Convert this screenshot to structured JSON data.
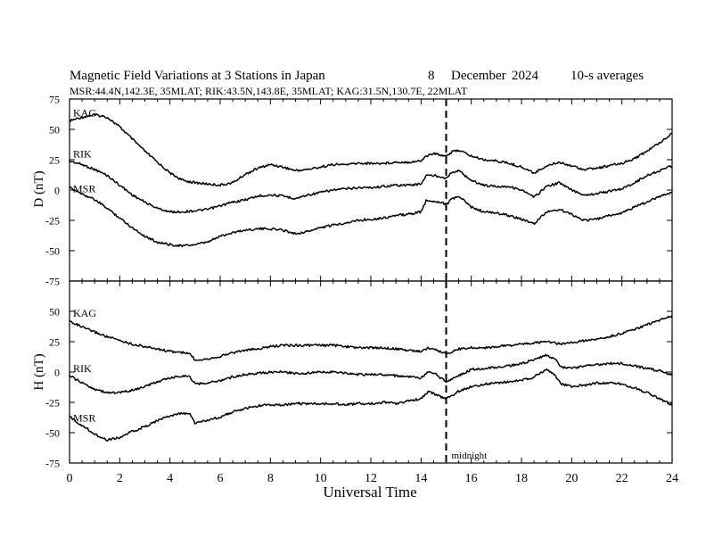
{
  "header": {
    "title": "Magnetic Field Variations at 3 Stations in Japan",
    "day": "8",
    "month": "December",
    "year": "2024",
    "averaging": "10-s averages",
    "stations": "MSR:44.4N,142.3E, 35MLAT;  RIK:43.5N,143.8E, 35MLAT;  KAG:31.5N,130.7E, 22MLAT"
  },
  "chart_data": [
    {
      "type": "line",
      "panel": "D",
      "ylabel": "D (nT)",
      "ylim": [
        -75,
        75
      ],
      "yticks": [
        "75",
        "50",
        "25",
        "0",
        "-25",
        "-50",
        "-75"
      ],
      "xlim": [
        0,
        24
      ],
      "xticks": [
        "0",
        "2",
        "4",
        "6",
        "8",
        "10",
        "12",
        "14",
        "16",
        "18",
        "20",
        "22",
        "24"
      ],
      "marker": {
        "x": 15,
        "label": ""
      },
      "series": [
        {
          "name": "KAG",
          "x": [
            0,
            0.5,
            1,
            1.5,
            2,
            2.5,
            3,
            3.5,
            4,
            4.5,
            5,
            5.5,
            6,
            6.5,
            7,
            7.5,
            8,
            8.5,
            9,
            9.5,
            10,
            10.5,
            11,
            11.5,
            12,
            12.5,
            13,
            13.5,
            14,
            14.2,
            14.5,
            14.8,
            15,
            15.2,
            15.5,
            16,
            16.5,
            17,
            17.5,
            18,
            18.5,
            19,
            19.5,
            20,
            20.5,
            21,
            21.5,
            22,
            22.5,
            23,
            23.5,
            24
          ],
          "y": [
            57,
            60,
            62,
            60,
            52,
            42,
            32,
            23,
            14,
            8,
            6,
            5,
            4,
            6,
            13,
            18,
            21,
            19,
            16,
            17,
            19,
            21,
            21,
            22,
            22,
            22,
            23,
            23,
            24,
            28,
            30,
            29,
            28,
            31,
            33,
            28,
            25,
            24,
            22,
            19,
            14,
            20,
            23,
            20,
            17,
            18,
            20,
            22,
            26,
            32,
            39,
            47
          ]
        },
        {
          "name": "RIK",
          "x": [
            0,
            0.5,
            1,
            1.5,
            2,
            2.5,
            3,
            3.5,
            4,
            4.5,
            5,
            5.5,
            6,
            6.5,
            7,
            7.5,
            8,
            8.5,
            9,
            9.5,
            10,
            10.5,
            11,
            11.5,
            12,
            12.5,
            13,
            13.5,
            14,
            14.2,
            14.5,
            14.8,
            15,
            15.2,
            15.5,
            16,
            16.5,
            17,
            17.5,
            18,
            18.5,
            19,
            19.5,
            20,
            20.5,
            21,
            21.5,
            22,
            22.5,
            23,
            23.5,
            24
          ],
          "y": [
            24,
            21,
            17,
            12,
            4,
            -4,
            -10,
            -15,
            -18,
            -18,
            -17,
            -16,
            -13,
            -10,
            -8,
            -5,
            -4,
            -5,
            -7,
            -4,
            -2,
            0,
            1,
            2,
            2,
            3,
            4,
            4,
            5,
            12,
            12,
            11,
            10,
            14,
            16,
            8,
            4,
            3,
            3,
            0,
            -6,
            3,
            6,
            0,
            -4,
            -3,
            -1,
            1,
            6,
            12,
            16,
            20
          ]
        },
        {
          "name": "MSR",
          "x": [
            0,
            0.5,
            1,
            1.5,
            2,
            2.5,
            3,
            3.5,
            4,
            4.5,
            5,
            5.5,
            6,
            6.5,
            7,
            7.5,
            8,
            8.5,
            9,
            9.5,
            10,
            10.5,
            11,
            11.5,
            12,
            12.5,
            13,
            13.5,
            14,
            14.2,
            14.5,
            14.8,
            15,
            15.2,
            15.5,
            16,
            16.5,
            17,
            17.5,
            18,
            18.5,
            19,
            19.5,
            20,
            20.5,
            21,
            21.5,
            22,
            22.5,
            23,
            23.5,
            24
          ],
          "y": [
            2,
            -3,
            -8,
            -15,
            -23,
            -31,
            -38,
            -43,
            -45,
            -46,
            -45,
            -43,
            -38,
            -35,
            -33,
            -32,
            -32,
            -33,
            -36,
            -34,
            -31,
            -29,
            -27,
            -25,
            -24,
            -23,
            -21,
            -20,
            -18,
            -9,
            -9,
            -10,
            -12,
            -8,
            -5,
            -14,
            -18,
            -19,
            -21,
            -24,
            -28,
            -18,
            -16,
            -20,
            -25,
            -24,
            -21,
            -19,
            -14,
            -10,
            -5,
            -2
          ]
        }
      ]
    },
    {
      "type": "line",
      "panel": "H",
      "ylabel": "H (nT)",
      "ylim": [
        -75,
        75
      ],
      "yticks": [
        "50",
        "25",
        "0",
        "-25",
        "-50",
        "-75"
      ],
      "xlim": [
        0,
        24
      ],
      "xticks": [
        "0",
        "2",
        "4",
        "6",
        "8",
        "10",
        "12",
        "14",
        "16",
        "18",
        "20",
        "22",
        "24"
      ],
      "xlabel": "Universal Time",
      "marker": {
        "x": 15,
        "label": "midnight"
      },
      "series": [
        {
          "name": "KAG",
          "x": [
            0,
            0.5,
            1,
            1.5,
            2,
            2.5,
            3,
            3.5,
            4,
            4.5,
            4.8,
            5,
            5.5,
            6,
            6.5,
            7,
            7.5,
            8,
            8.5,
            9,
            9.5,
            10,
            10.5,
            11,
            11.5,
            12,
            12.5,
            13,
            13.5,
            14,
            14.3,
            14.6,
            15,
            15.5,
            16,
            16.5,
            17,
            17.5,
            18,
            18.5,
            19,
            19.3,
            19.6,
            20,
            20.5,
            21,
            21.5,
            22,
            22.5,
            23,
            23.5,
            24
          ],
          "y": [
            42,
            37,
            33,
            29,
            26,
            23,
            21,
            19,
            17,
            16,
            15,
            10,
            11,
            13,
            16,
            18,
            19,
            21,
            22,
            22,
            22,
            22,
            22,
            21,
            20,
            20,
            20,
            19,
            18,
            17,
            20,
            18,
            15,
            19,
            20,
            20,
            21,
            22,
            23,
            24,
            25,
            24,
            23,
            24,
            26,
            27,
            29,
            32,
            35,
            39,
            43,
            46
          ]
        },
        {
          "name": "RIK",
          "x": [
            0,
            0.5,
            1,
            1.5,
            2,
            2.5,
            3,
            3.5,
            4,
            4.5,
            4.8,
            5,
            5.5,
            6,
            6.5,
            7,
            7.5,
            8,
            8.5,
            9,
            9.5,
            10,
            10.5,
            11,
            11.5,
            12,
            12.5,
            13,
            13.5,
            14,
            14.3,
            14.6,
            15,
            15.5,
            16,
            16.5,
            17,
            17.5,
            18,
            18.5,
            19,
            19.3,
            19.6,
            20,
            20.5,
            21,
            21.5,
            22,
            22.5,
            23,
            23.5,
            24
          ],
          "y": [
            -3,
            -9,
            -14,
            -17,
            -17,
            -15,
            -12,
            -8,
            -5,
            -3,
            -4,
            -10,
            -9,
            -7,
            -4,
            -2,
            -1,
            0,
            0,
            -1,
            -1,
            0,
            0,
            -1,
            -2,
            -2,
            -2,
            -3,
            -4,
            -5,
            0,
            -2,
            -8,
            -3,
            2,
            3,
            4,
            5,
            7,
            10,
            14,
            11,
            4,
            3,
            5,
            6,
            7,
            7,
            5,
            3,
            1,
            -2
          ]
        },
        {
          "name": "MSR",
          "x": [
            0,
            0.5,
            1,
            1.5,
            2,
            2.5,
            3,
            3.5,
            4,
            4.5,
            4.8,
            5,
            5.5,
            6,
            6.5,
            7,
            7.5,
            8,
            8.5,
            9,
            9.5,
            10,
            10.5,
            11,
            11.5,
            12,
            12.5,
            13,
            13.5,
            14,
            14.3,
            14.6,
            15,
            15.5,
            16,
            16.5,
            17,
            17.5,
            18,
            18.5,
            19,
            19.3,
            19.6,
            20,
            20.5,
            21,
            21.5,
            22,
            22.5,
            23,
            23.5,
            24
          ],
          "y": [
            -37,
            -44,
            -51,
            -56,
            -54,
            -49,
            -45,
            -40,
            -36,
            -34,
            -35,
            -42,
            -40,
            -37,
            -33,
            -30,
            -28,
            -27,
            -27,
            -26,
            -26,
            -26,
            -26,
            -27,
            -26,
            -26,
            -25,
            -26,
            -24,
            -22,
            -16,
            -19,
            -22,
            -16,
            -12,
            -10,
            -9,
            -8,
            -7,
            -4,
            2,
            -2,
            -10,
            -12,
            -11,
            -9,
            -9,
            -10,
            -13,
            -17,
            -22,
            -27
          ]
        }
      ]
    }
  ]
}
